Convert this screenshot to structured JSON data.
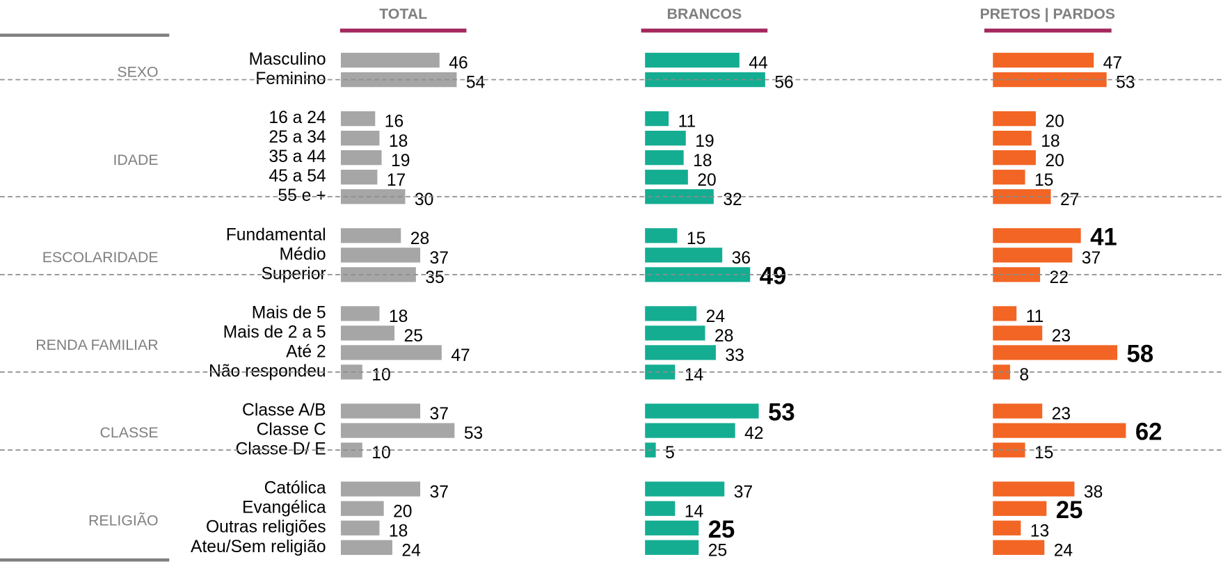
{
  "chart_data": {
    "type": "bar",
    "columns": [
      {
        "name": "TOTAL",
        "color": "#a6a6a6"
      },
      {
        "name": "BRANCOS",
        "color": "#14ad92"
      },
      {
        "name": "PRETOS | PARDOS",
        "color": "#f26524"
      }
    ],
    "groups": [
      {
        "name": "SEXO",
        "rows": [
          {
            "label": "Masculino",
            "values": [
              46,
              44,
              47
            ],
            "bold": [
              false,
              false,
              false
            ]
          },
          {
            "label": "Feminino",
            "values": [
              54,
              56,
              53
            ],
            "bold": [
              false,
              false,
              false
            ]
          }
        ]
      },
      {
        "name": "IDADE",
        "rows": [
          {
            "label": "16 a 24",
            "values": [
              16,
              11,
              20
            ],
            "bold": [
              false,
              false,
              false
            ]
          },
          {
            "label": "25 a 34",
            "values": [
              18,
              19,
              18
            ],
            "bold": [
              false,
              false,
              false
            ]
          },
          {
            "label": "35 a 44",
            "values": [
              19,
              18,
              20
            ],
            "bold": [
              false,
              false,
              false
            ]
          },
          {
            "label": "45 a 54",
            "values": [
              17,
              20,
              15
            ],
            "bold": [
              false,
              false,
              false
            ]
          },
          {
            "label": "55 e +",
            "values": [
              30,
              32,
              27
            ],
            "bold": [
              false,
              false,
              false
            ]
          }
        ]
      },
      {
        "name": "ESCOLARIDADE",
        "rows": [
          {
            "label": "Fundamental",
            "values": [
              28,
              15,
              41
            ],
            "bold": [
              false,
              false,
              true
            ]
          },
          {
            "label": "Médio",
            "values": [
              37,
              36,
              37
            ],
            "bold": [
              false,
              false,
              false
            ]
          },
          {
            "label": "Superior",
            "values": [
              35,
              49,
              22
            ],
            "bold": [
              false,
              true,
              false
            ]
          }
        ]
      },
      {
        "name": "RENDA FAMILIAR",
        "rows": [
          {
            "label": "Mais de 5",
            "values": [
              18,
              24,
              11
            ],
            "bold": [
              false,
              false,
              false
            ]
          },
          {
            "label": "Mais de 2 a 5",
            "values": [
              25,
              28,
              23
            ],
            "bold": [
              false,
              false,
              false
            ]
          },
          {
            "label": "Até 2",
            "values": [
              47,
              33,
              58
            ],
            "bold": [
              false,
              false,
              true
            ]
          },
          {
            "label": "Não respondeu",
            "values": [
              10,
              14,
              8
            ],
            "bold": [
              false,
              false,
              false
            ]
          }
        ]
      },
      {
        "name": "CLASSE",
        "rows": [
          {
            "label": "Classe A/B",
            "values": [
              37,
              53,
              23
            ],
            "bold": [
              false,
              true,
              false
            ]
          },
          {
            "label": "Classe C",
            "values": [
              53,
              42,
              62
            ],
            "bold": [
              false,
              false,
              true
            ]
          },
          {
            "label": "Classe D/ E",
            "values": [
              10,
              5,
              15
            ],
            "bold": [
              false,
              false,
              false
            ]
          }
        ]
      },
      {
        "name": "RELIGIÃO",
        "rows": [
          {
            "label": "Católica",
            "values": [
              37,
              37,
              38
            ],
            "bold": [
              false,
              false,
              false
            ]
          },
          {
            "label": "Evangélica",
            "values": [
              20,
              14,
              25
            ],
            "bold": [
              false,
              false,
              true
            ]
          },
          {
            "label": "Outras religiões",
            "values": [
              18,
              25,
              13
            ],
            "bold": [
              false,
              true,
              false
            ]
          },
          {
            "label": "Ateu/Sem religião",
            "values": [
              24,
              25,
              24
            ],
            "bold": [
              false,
              false,
              false
            ]
          }
        ]
      }
    ]
  }
}
